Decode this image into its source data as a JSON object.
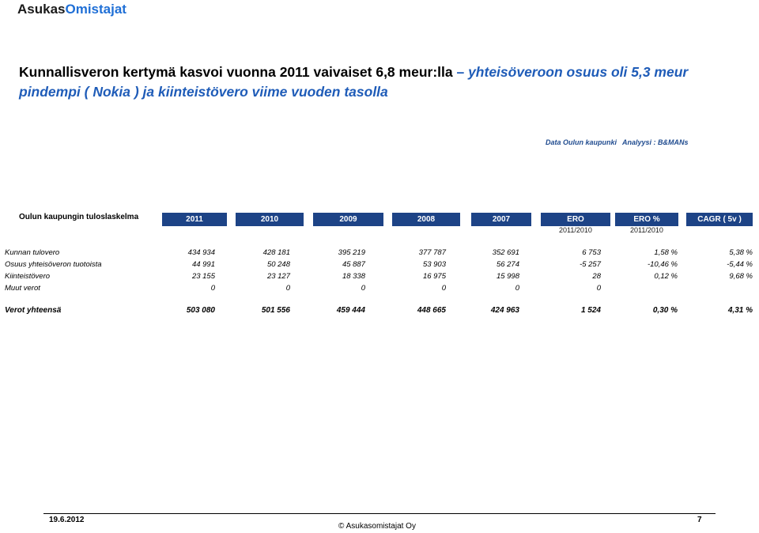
{
  "brand": {
    "part1": "Asukas",
    "part2": "Omistajat"
  },
  "title": {
    "line1_bold": "Kunnallisveron kertymä kasvoi vuonna 2011  vaivaiset 6,8  meur:lla",
    "line1_dash": " – ",
    "line1_italic": "yhteisöveroon osuus oli 5,3 meur",
    "line2_italic": "pindempi ( Nokia ) ja kiinteistövero viime vuoden tasolla"
  },
  "source": {
    "data": "Data Oulun kaupunki",
    "analysis": "Analyysi : B&MANs"
  },
  "table": {
    "row_header_label": "Oulun kaupungin tuloslaskelma",
    "columns": [
      "2011",
      "2010",
      "2009",
      "2008",
      "2007",
      "ERO",
      "ERO %",
      "CAGR ( 5v )"
    ],
    "subheaders": [
      "2011/2010",
      "2011/2010"
    ],
    "rows": [
      {
        "label": "Kunnan tulovero",
        "values": [
          "434 934",
          "428 181",
          "395 219",
          "377 787",
          "352 691",
          "6 753",
          "1,58 %",
          "5,38 %"
        ]
      },
      {
        "label": "Osuus yhteisöveron tuotoista",
        "values": [
          "44 991",
          "50 248",
          "45 887",
          "53 903",
          "56 274",
          "-5 257",
          "-10,46 %",
          "-5,44 %"
        ]
      },
      {
        "label": "Kiinteistövero",
        "values": [
          "23 155",
          "23 127",
          "18 338",
          "16 975",
          "15 998",
          "28",
          "0,12 %",
          "9,68 %"
        ]
      },
      {
        "label": "Muut verot",
        "values": [
          "0",
          "0",
          "0",
          "0",
          "0",
          "0",
          "",
          ""
        ]
      }
    ],
    "total": {
      "label": "Verot yhteensä",
      "values": [
        "503 080",
        "501 556",
        "459 444",
        "448 665",
        "424 963",
        "1 524",
        "0,30 %",
        "4,31 %"
      ]
    }
  },
  "footer": {
    "date": "19.6.2012",
    "copyright": "© Asukasomistajat Oy",
    "page": "7"
  }
}
